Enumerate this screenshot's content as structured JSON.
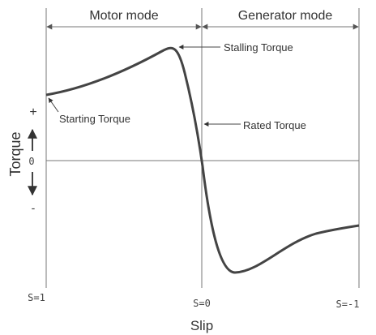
{
  "header": {
    "motor_mode": "Motor mode",
    "generator_mode": "Generator mode"
  },
  "annotations": {
    "stalling": "Stalling Torque",
    "starting": "Starting Torque",
    "rated": "Rated Torque"
  },
  "y_axis": {
    "label": "Torque",
    "plus": "+",
    "zero": "0",
    "minus": "-"
  },
  "x_axis": {
    "label": "Slip",
    "left": "S=1",
    "middle": "S=0",
    "right": "S=-1"
  }
}
